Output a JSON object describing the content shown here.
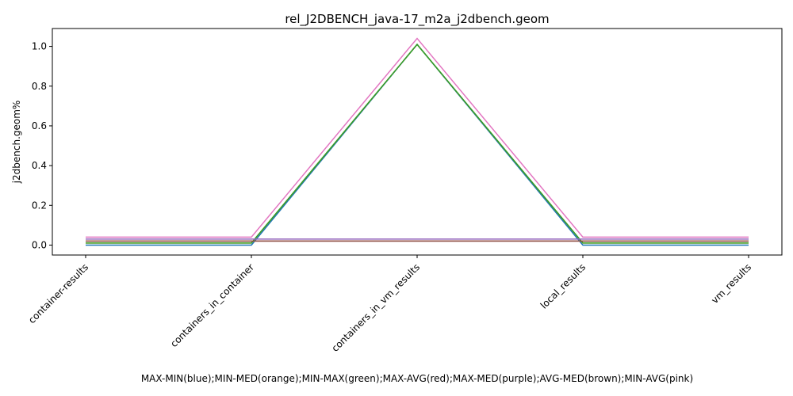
{
  "chart_data": {
    "type": "line",
    "title": "rel_J2DBENCH_java-17_m2a_j2dbench.geom",
    "xlabel": "MAX-MIN(blue);MIN-MED(orange);MIN-MAX(green);MAX-AVG(red);MAX-MED(purple);AVG-MED(brown);MIN-AVG(pink)",
    "ylabel": "j2dbench.geom%",
    "categories": [
      "container-results",
      "containers_in_container",
      "containers_in_vm_results",
      "local_results",
      "vm_results"
    ],
    "ylim": [
      -0.05,
      1.09
    ],
    "yticks": [
      "0.0",
      "0.2",
      "0.4",
      "0.6",
      "0.8",
      "1.0"
    ],
    "grid": false,
    "series": [
      {
        "name": "MAX-MIN",
        "color": "#1f77b4",
        "values": [
          0.0,
          0.0,
          1.01,
          0.0,
          0.0
        ]
      },
      {
        "name": "MIN-MED",
        "color": "#ff7f0e",
        "values": [
          0.01,
          0.01,
          1.01,
          0.01,
          0.01
        ]
      },
      {
        "name": "MIN-MAX",
        "color": "#2ca02c",
        "values": [
          0.01,
          0.01,
          1.01,
          0.01,
          0.01
        ]
      },
      {
        "name": "MAX-AVG",
        "color": "#d62728",
        "values": [
          0.02,
          0.02,
          0.02,
          0.02,
          0.02
        ]
      },
      {
        "name": "MAX-MED",
        "color": "#9467bd",
        "values": [
          0.03,
          0.03,
          0.03,
          0.03,
          0.03
        ]
      },
      {
        "name": "AVG-MED",
        "color": "#8c564b",
        "values": [
          0.02,
          0.02,
          0.02,
          0.02,
          0.02
        ]
      },
      {
        "name": "MIN-AVG",
        "color": "#e377c2",
        "values": [
          0.04,
          0.04,
          1.04,
          0.04,
          0.04
        ]
      }
    ]
  }
}
